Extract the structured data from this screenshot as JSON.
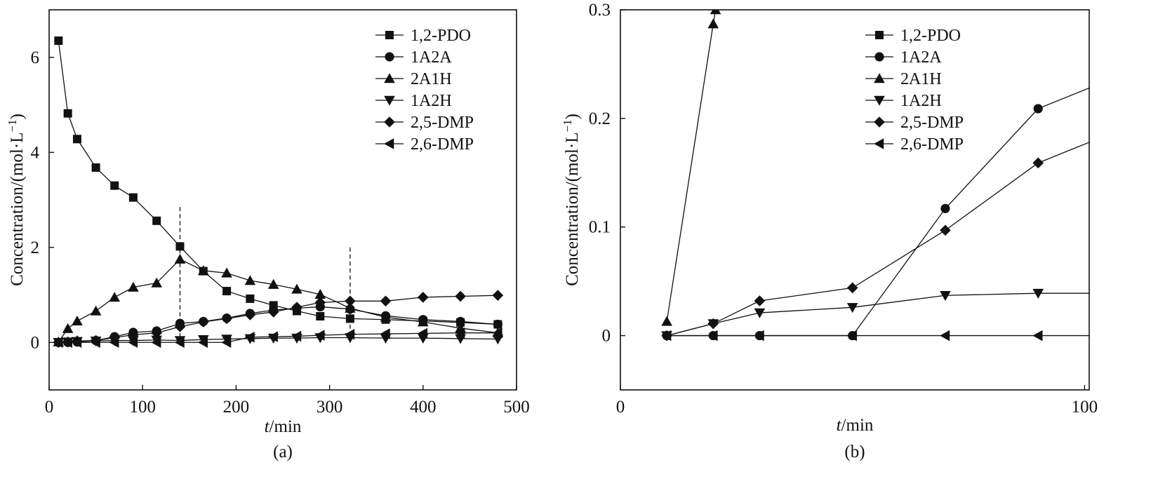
{
  "chart_data": [
    {
      "id": "a",
      "type": "line",
      "caption": "(a)",
      "xlabel_italic": "t",
      "xlabel_unit": "/min",
      "ylabel": "Concentration/(mol·L",
      "ylabel_sup": "−1",
      "ylabel_close": ")",
      "xlim": [
        0,
        500
      ],
      "ylim": [
        -1,
        7
      ],
      "xticks": [
        0,
        100,
        200,
        300,
        400,
        500
      ],
      "yticks": [
        0,
        2,
        4,
        6
      ],
      "legend_position": "top-right",
      "reference_lines": [
        {
          "x": 140,
          "y_top": 2.85
        },
        {
          "x": 322,
          "y_top": 2.0
        }
      ],
      "series": [
        {
          "name": "1,2-PDO",
          "marker": "square",
          "x": [
            10,
            20,
            30,
            50,
            70,
            90,
            115,
            140,
            165,
            190,
            215,
            240,
            265,
            290,
            322,
            360,
            400,
            440,
            480
          ],
          "y": [
            6.35,
            4.82,
            4.28,
            3.68,
            3.3,
            3.05,
            2.56,
            2.02,
            1.5,
            1.08,
            0.92,
            0.78,
            0.66,
            0.55,
            0.5,
            0.48,
            0.45,
            0.42,
            0.38
          ]
        },
        {
          "name": "1A2A",
          "marker": "circle",
          "x": [
            10,
            20,
            30,
            50,
            70,
            90,
            115,
            140,
            165,
            190,
            215,
            240,
            265,
            290,
            322,
            360,
            400,
            440,
            480
          ],
          "y": [
            0,
            0,
            0.01,
            0.04,
            0.12,
            0.21,
            0.24,
            0.4,
            0.44,
            0.51,
            0.61,
            0.68,
            0.72,
            0.75,
            0.7,
            0.56,
            0.48,
            0.44,
            0.38
          ]
        },
        {
          "name": "2A1H",
          "marker": "triangle-up",
          "x": [
            10,
            20,
            30,
            50,
            70,
            90,
            115,
            140,
            165,
            190,
            215,
            240,
            265,
            290,
            322,
            360,
            400,
            440,
            480
          ],
          "y": [
            0.01,
            0.29,
            0.45,
            0.66,
            0.95,
            1.16,
            1.25,
            1.75,
            1.51,
            1.46,
            1.3,
            1.22,
            1.12,
            1.01,
            0.72,
            0.53,
            0.43,
            0.3,
            0.2
          ]
        },
        {
          "name": "1A2H",
          "marker": "triangle-down",
          "x": [
            10,
            20,
            30,
            50,
            70,
            90,
            115,
            140,
            165,
            190,
            215,
            240,
            265,
            290,
            322,
            360,
            400,
            440,
            480
          ],
          "y": [
            0,
            0.01,
            0.02,
            0.03,
            0.04,
            0.04,
            0.05,
            0.04,
            0.06,
            0.07,
            0.08,
            0.09,
            0.09,
            0.1,
            0.1,
            0.09,
            0.09,
            0.08,
            0.07
          ]
        },
        {
          "name": "2,5-DMP",
          "marker": "diamond",
          "x": [
            10,
            20,
            30,
            50,
            70,
            90,
            115,
            140,
            165,
            190,
            215,
            240,
            265,
            290,
            322,
            360,
            400,
            440,
            480
          ],
          "y": [
            0,
            0.01,
            0.03,
            0.04,
            0.1,
            0.16,
            0.2,
            0.33,
            0.43,
            0.5,
            0.58,
            0.64,
            0.74,
            0.84,
            0.87,
            0.87,
            0.95,
            0.97,
            0.99
          ]
        },
        {
          "name": "2,6-DMP",
          "marker": "triangle-left",
          "x": [
            10,
            20,
            30,
            50,
            70,
            90,
            115,
            140,
            165,
            190,
            215,
            240,
            265,
            290,
            322,
            360,
            400,
            440,
            480
          ],
          "y": [
            0,
            0,
            0,
            0,
            0,
            0,
            0,
            0,
            0,
            0,
            0.11,
            0.12,
            0.13,
            0.15,
            0.17,
            0.18,
            0.19,
            0.2,
            0.2
          ]
        }
      ]
    },
    {
      "id": "b",
      "type": "line",
      "caption": "(b)",
      "xlabel_italic": "t",
      "xlabel_unit": "/min",
      "ylabel": "Concentration/(mol·L",
      "ylabel_sup": "−1",
      "ylabel_close": ")",
      "xlim": [
        0,
        101
      ],
      "ylim": [
        -0.05,
        0.3
      ],
      "xticks": [
        0,
        100
      ],
      "xtick_labels": [
        "0",
        "100"
      ],
      "yticks": [
        0,
        0.1,
        0.2,
        0.3
      ],
      "ytick_labels": [
        "0",
        "0.1",
        "0.2",
        "0.3"
      ],
      "legend_position": "top-center",
      "series": [
        {
          "name": "1,2-PDO",
          "marker": "square",
          "x": [],
          "y": []
        },
        {
          "name": "1A2A",
          "marker": "circle",
          "x": [
            10,
            20,
            30,
            50,
            70,
            90,
            101
          ],
          "y": [
            0,
            0,
            0,
            0,
            0.117,
            0.209,
            0.228
          ]
        },
        {
          "name": "2A1H",
          "marker": "triangle-up",
          "x": [
            10,
            20,
            20.5
          ],
          "y": [
            0.013,
            0.287,
            0.3
          ]
        },
        {
          "name": "1A2H",
          "marker": "triangle-down",
          "x": [
            10,
            20,
            30,
            50,
            70,
            90,
            101
          ],
          "y": [
            0,
            0.011,
            0.021,
            0.026,
            0.037,
            0.039,
            0.039
          ]
        },
        {
          "name": "2,5-DMP",
          "marker": "diamond",
          "x": [
            10,
            20,
            30,
            50,
            70,
            90,
            101
          ],
          "y": [
            0,
            0.011,
            0.032,
            0.044,
            0.097,
            0.159,
            0.178
          ]
        },
        {
          "name": "2,6-DMP",
          "marker": "triangle-left",
          "x": [
            10,
            20,
            30,
            50,
            70,
            90,
            101
          ],
          "y": [
            0,
            0,
            0,
            0,
            0,
            0,
            0
          ]
        }
      ]
    }
  ]
}
